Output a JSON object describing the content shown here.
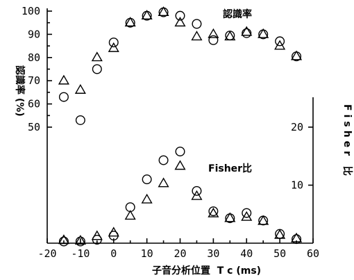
{
  "chart_data": {
    "type": "scatter",
    "x_label": "子音分析位置  T c (ms)",
    "y_left_label": "認識率 (%)",
    "y_right_label": "Fisher 比",
    "x_ticks": [
      -20,
      -10,
      0,
      10,
      20,
      30,
      40,
      50,
      60
    ],
    "x_tick_labels": [
      "-20",
      "-10",
      "0",
      "10",
      "20",
      "30",
      "40",
      "50",
      "60"
    ],
    "y_left_ticks": [
      50,
      60,
      70,
      80,
      90,
      100
    ],
    "y_right_ticks": [
      10,
      20
    ],
    "x_range": [
      -20,
      60
    ],
    "y_left_range": [
      50,
      100
    ],
    "y_right_range": [
      0,
      20
    ],
    "annotations": {
      "recognition": "認識率",
      "fisher": "Fisher比"
    },
    "marker_types": [
      "circle",
      "triangle"
    ],
    "recognition_series": [
      {
        "marker": "circle",
        "x": [
          -15,
          -10,
          -5,
          0,
          5,
          10,
          15,
          20,
          25,
          30,
          35,
          40,
          45,
          50,
          55
        ],
        "y": [
          63,
          53,
          75,
          86.5,
          95,
          98,
          99.5,
          98,
          94.5,
          87.5,
          89.5,
          90.5,
          90,
          87,
          80.5
        ]
      },
      {
        "marker": "triangle",
        "x": [
          -15,
          -10,
          -5,
          0,
          5,
          10,
          15,
          20,
          25,
          30,
          35,
          40,
          45,
          50,
          55
        ],
        "y": [
          70,
          66,
          80,
          84,
          95,
          98,
          99.5,
          95,
          89,
          90,
          89,
          91,
          90,
          85,
          80.5
        ]
      }
    ],
    "fisher_series": [
      {
        "marker": "circle",
        "x": [
          -15,
          -10,
          -5,
          0,
          5,
          10,
          15,
          20,
          25,
          30,
          35,
          40,
          45,
          50,
          55
        ],
        "y": [
          0.3,
          0.3,
          0.6,
          1.3,
          6.2,
          11,
          14.3,
          15.8,
          9,
          5.5,
          4.3,
          5.2,
          3.9,
          1.6,
          0.7
        ]
      },
      {
        "marker": "triangle",
        "x": [
          -15,
          -10,
          -5,
          0,
          5,
          10,
          15,
          20,
          25,
          30,
          35,
          40,
          45,
          50,
          55
        ],
        "y": [
          0.5,
          0.4,
          1.2,
          1.8,
          4.7,
          7.5,
          10.3,
          13.3,
          8.1,
          5.1,
          4.3,
          4.5,
          3.8,
          1.4,
          0.8
        ]
      }
    ]
  }
}
